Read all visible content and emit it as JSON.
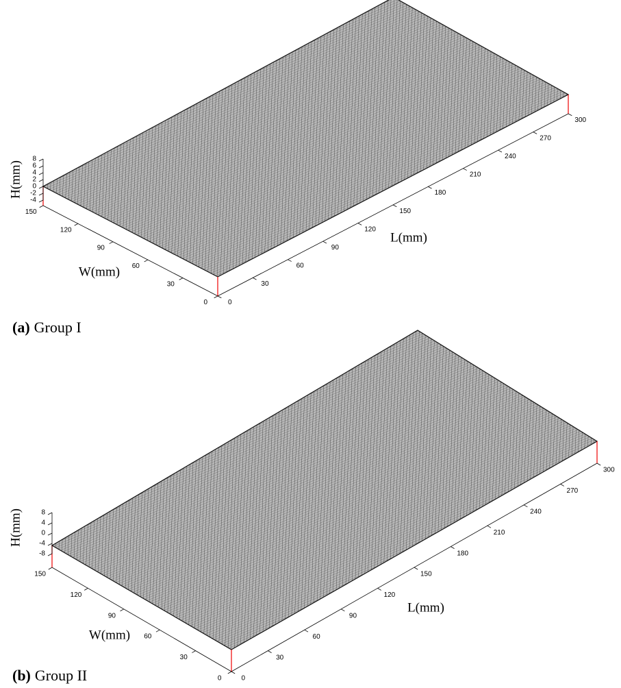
{
  "chart_data": [
    {
      "type": "surface",
      "panel": "(a)",
      "caption": "Group I",
      "xlabel": "L(mm)",
      "ylabel": "W(mm)",
      "zlabel": "H(mm)",
      "xlim": [
        0,
        300
      ],
      "xticks": [
        0,
        30,
        60,
        90,
        120,
        150,
        180,
        210,
        240,
        270,
        300
      ],
      "ylim": [
        0,
        150
      ],
      "yticks": [
        0,
        30,
        60,
        90,
        120,
        150
      ],
      "zlim": [
        -4,
        8
      ],
      "zticks": [
        -4,
        -2,
        0,
        2,
        4,
        6,
        8
      ]
    },
    {
      "type": "surface",
      "panel": "(b)",
      "caption": "Group II",
      "xlabel": "L(mm)",
      "ylabel": "W(mm)",
      "zlabel": "H(mm)",
      "xlim": [
        0,
        300
      ],
      "xticks": [
        0,
        30,
        60,
        90,
        120,
        150,
        180,
        210,
        240,
        270,
        300
      ],
      "ylim": [
        0,
        150
      ],
      "yticks": [
        0,
        30,
        60,
        90,
        120,
        150
      ],
      "zlim": [
        -8,
        8
      ],
      "zticks": [
        -8,
        -4,
        0,
        4,
        8
      ]
    }
  ]
}
